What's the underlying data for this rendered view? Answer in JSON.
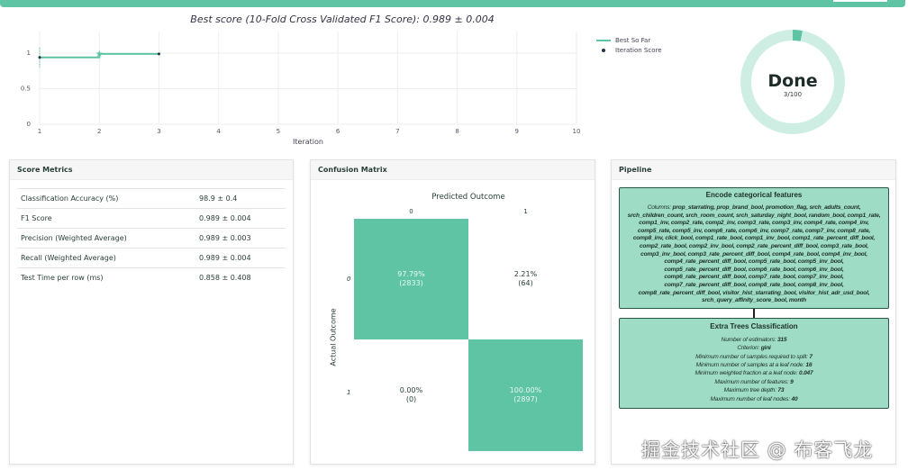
{
  "header": {
    "accent": "#5ec4a4"
  },
  "chart_data": {
    "type": "line",
    "title": "Best score (10-Fold Cross Validated F1 Score): 0.989 ± 0.004",
    "xlabel": "Iteration",
    "ylabel": "",
    "xlim": [
      1,
      10
    ],
    "ylim": [
      0,
      1.2
    ],
    "x_ticks": [
      "1",
      "2",
      "3",
      "4",
      "5",
      "6",
      "7",
      "8",
      "9",
      "10"
    ],
    "y_ticks": [
      "0",
      "0.5",
      "1"
    ],
    "series": [
      {
        "name": "Best So Far",
        "x": [
          1,
          2,
          2,
          3
        ],
        "y": [
          0.94,
          0.94,
          0.989,
          0.989
        ]
      },
      {
        "name": "Iteration Score",
        "x": [
          1,
          2,
          3
        ],
        "y": [
          0.94,
          0.989,
          0.989
        ],
        "error": [
          0.14,
          0,
          0
        ]
      }
    ],
    "legend": "top-right"
  },
  "progress": {
    "status": "Done",
    "label": "3/100",
    "fraction": 0.03
  },
  "score_metrics": {
    "title": "Score Metrics",
    "rows": [
      {
        "name": "Classification Accuracy (%)",
        "value": "98.9 ± 0.4"
      },
      {
        "name": "F1 Score",
        "value": "0.989 ± 0.004"
      },
      {
        "name": "Precision (Weighted Average)",
        "value": "0.989 ± 0.003"
      },
      {
        "name": "Recall (Weighted Average)",
        "value": "0.989 ± 0.004"
      },
      {
        "name": "Test Time per row (ms)",
        "value": "0.858 ± 0.408"
      }
    ]
  },
  "confusion": {
    "title": "Confusion Matrix",
    "xlabel": "Predicted Outcome",
    "ylabel": "Actual Outcome",
    "cols": [
      "0",
      "1"
    ],
    "rows": [
      "0",
      "1"
    ],
    "cells": [
      [
        "97.79%",
        "(2833)"
      ],
      [
        "2.21%",
        "(64)"
      ],
      [
        "0.00%",
        "(0)"
      ],
      [
        "100.00%",
        "(2897)"
      ]
    ]
  },
  "pipeline": {
    "title": "Pipeline",
    "step1": {
      "title": "Encode categorical features",
      "label": "Columns:",
      "columns": "prop_starrating, prop_brand_bool, promotion_flag, srch_adults_count, srch_children_count, srch_room_count, srch_saturday_night_bool, random_bool, comp1_rate, comp1_inv, comp2_rate, comp2_inv, comp3_rate, comp3_inv, comp4_rate, comp4_inv, comp5_rate, comp5_inv, comp6_rate, comp6_inv, comp7_rate, comp7_inv, comp8_rate, comp8_inv, click_bool, comp1_rate_bool, comp1_inv_bool, comp1_rate_percent_diff_bool, comp2_rate_bool, comp2_inv_bool, comp2_rate_percent_diff_bool, comp3_rate_bool, comp3_inv_bool, comp3_rate_percent_diff_bool, comp4_rate_bool, comp4_inv_bool, comp4_rate_percent_diff_bool, comp5_rate_bool, comp5_inv_bool, comp5_rate_percent_diff_bool, comp6_rate_bool, comp6_inv_bool, comp6_rate_percent_diff_bool, comp7_rate_bool, comp7_inv_bool, comp7_rate_percent_diff_bool, comp8_rate_bool, comp8_inv_bool, comp8_rate_percent_diff_bool, visitor_hist_starrating_bool, visitor_hist_adr_usd_bool, srch_query_affinity_score_bool, month"
    },
    "step2": {
      "title": "Extra Trees Classification",
      "params": [
        {
          "k": "Number of estimators:",
          "v": "315"
        },
        {
          "k": "Criterion:",
          "v": "gini"
        },
        {
          "k": "Minimum number of samples required to split:",
          "v": "7"
        },
        {
          "k": "Minimum number of samples at a leaf node:",
          "v": "16"
        },
        {
          "k": "Minimum weighted fraction at a leaf node:",
          "v": "0.047"
        },
        {
          "k": "Maximum number of features:",
          "v": "9"
        },
        {
          "k": "Maximum tree depth:",
          "v": "73"
        },
        {
          "k": "Maximum number of leaf nodes:",
          "v": "40"
        }
      ]
    }
  },
  "watermark": "掘金技术社区 @ 布客飞龙"
}
